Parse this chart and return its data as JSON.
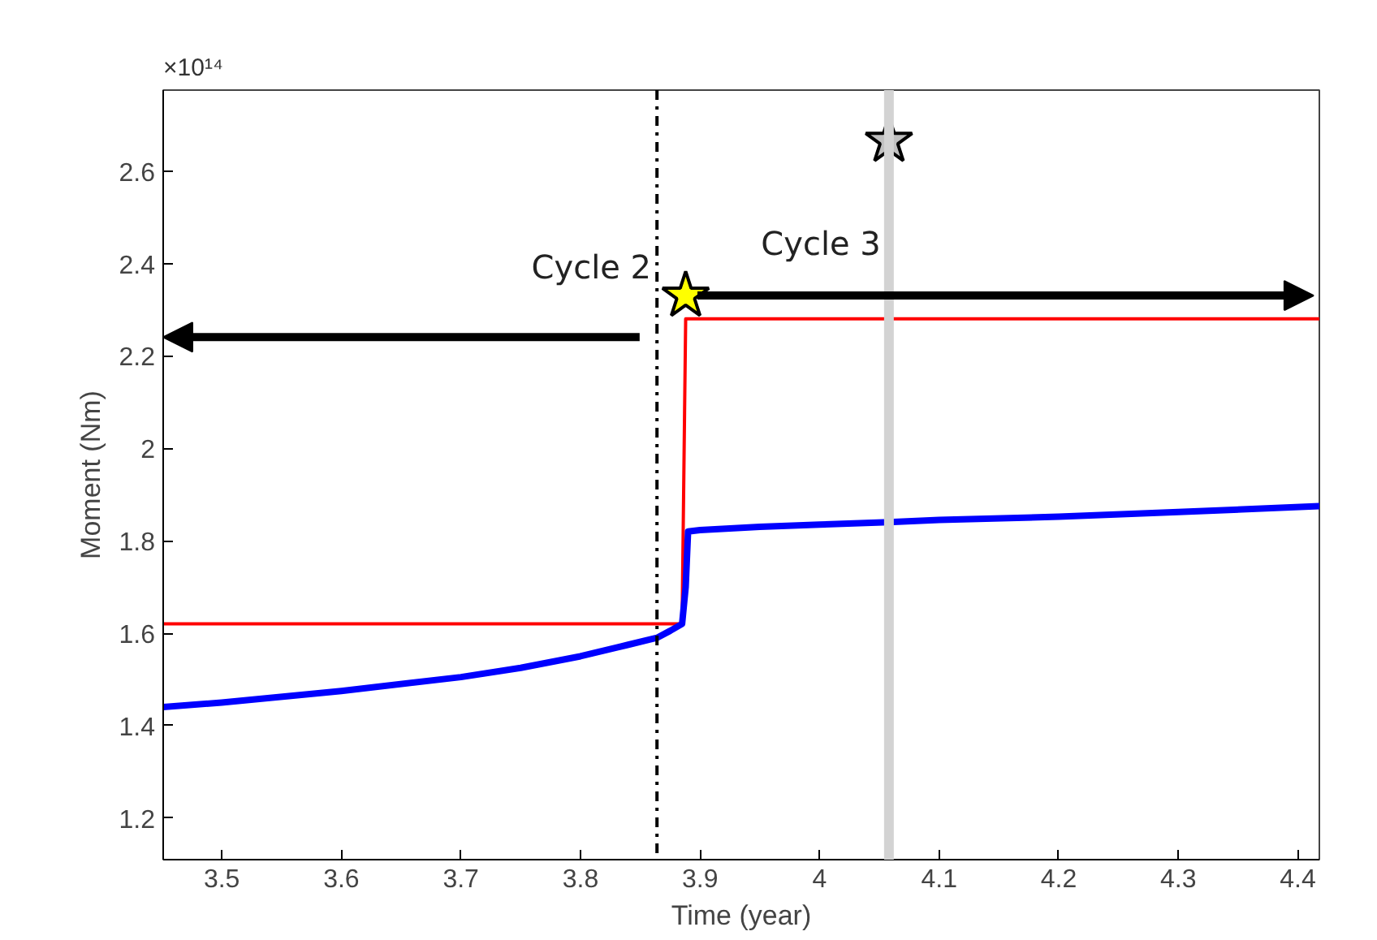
{
  "chart_data": {
    "type": "line",
    "xlabel": "Time (year)",
    "ylabel": "Moment (Nm)",
    "xlim": [
      3.451,
      4.418
    ],
    "ylim": [
      1.11,
      2.775
    ],
    "xticks": [
      3.5,
      3.6,
      3.7,
      3.8,
      3.9,
      4,
      4.1,
      4.2,
      4.3,
      4.4
    ],
    "yticks": [
      1.2,
      1.4,
      1.6,
      1.8,
      2,
      2.2,
      2.4,
      2.6
    ],
    "grid": false,
    "series": [
      {
        "color": "#ff0000",
        "x": [
          3.451,
          3.885,
          3.888,
          4.418
        ],
        "values": [
          1.62,
          1.62,
          2.28,
          2.28
        ]
      },
      {
        "color": "#0000ff",
        "x": [
          3.451,
          3.5,
          3.6,
          3.7,
          3.75,
          3.8,
          3.84,
          3.864,
          3.875,
          3.885,
          3.888,
          3.89,
          3.9,
          3.95,
          4.0,
          4.058,
          4.1,
          4.2,
          4.3,
          4.418
        ],
        "values": [
          1.44,
          1.45,
          1.475,
          1.505,
          1.525,
          1.55,
          1.575,
          1.59,
          1.605,
          1.62,
          1.7,
          1.82,
          1.823,
          1.83,
          1.835,
          1.84,
          1.845,
          1.852,
          1.862,
          1.875
        ]
      },
      {
        "type": "scatter",
        "marker": "star",
        "color": "#ffff00",
        "x": [
          3.888
        ],
        "values": [
          2.33
        ]
      },
      {
        "type": "scatter",
        "marker": "star",
        "color": "#c0c0c0",
        "x": [
          4.058
        ],
        "values": [
          2.665
        ]
      }
    ],
    "ref_lines": [
      {
        "axis": "x",
        "value": 3.864,
        "color": "#000000",
        "line_style": "dashdot"
      },
      {
        "axis": "x",
        "value": 4.058,
        "color": "#d3d3d3",
        "line_style": "solid"
      }
    ],
    "annotations": [
      "×10¹⁴",
      "Cycle 2",
      "Cycle 3"
    ]
  }
}
